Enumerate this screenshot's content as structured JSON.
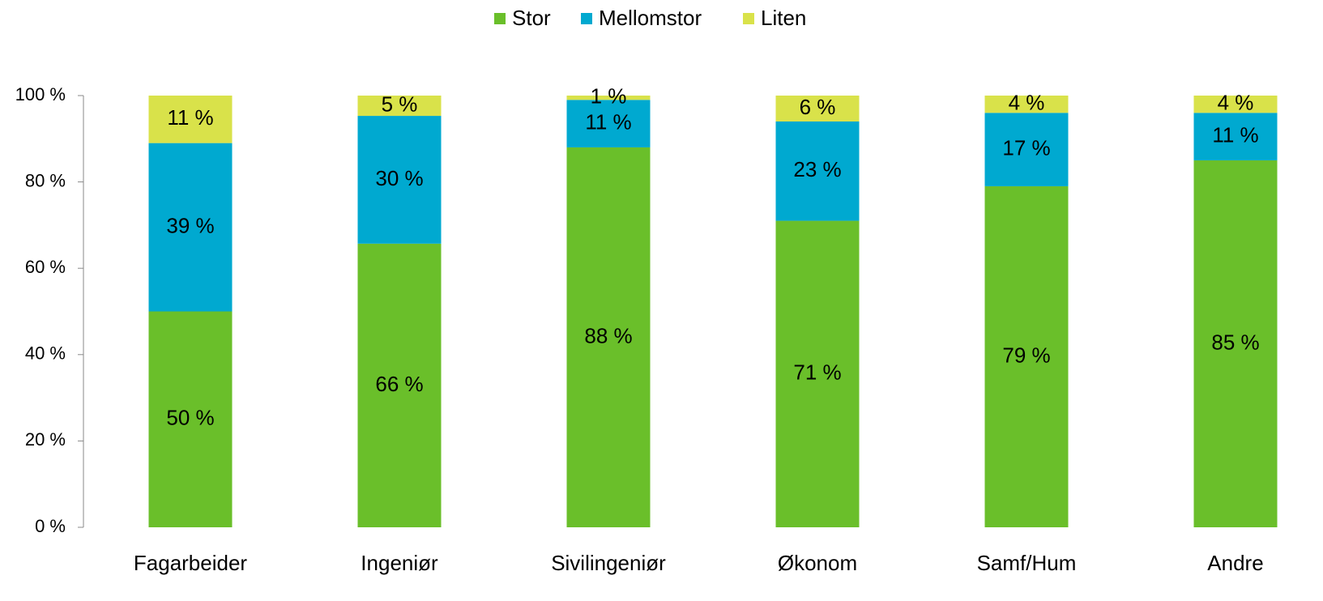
{
  "chart_data": {
    "type": "stacked_bar",
    "categories": [
      "Fagarbeider",
      "Ingeniør",
      "Sivilingeniør",
      "Økonom",
      "Samf/Hum",
      "Andre"
    ],
    "series": [
      {
        "name": "Stor",
        "color": "#6abf2a",
        "values": [
          50,
          65.7,
          88,
          71,
          79,
          85
        ],
        "value_labels": [
          "50 %",
          "66 %",
          "88 %",
          "71 %",
          "79 %",
          "85 %"
        ]
      },
      {
        "name": "Mellomstor",
        "color": "#00a9d0",
        "values": [
          39,
          29.6,
          11,
          23,
          17,
          11
        ],
        "value_labels": [
          "39 %",
          "30 %",
          "11 %",
          "23 %",
          "17 %",
          "11 %"
        ]
      },
      {
        "name": "Liten",
        "color": "#d9e24a",
        "values": [
          11,
          4.7,
          1,
          6,
          4,
          4
        ],
        "value_labels": [
          "11 %",
          "5 %",
          "1 %",
          "6 %",
          "4 %",
          "4 %"
        ]
      }
    ],
    "ylim": [
      0,
      100
    ],
    "yticks": [
      {
        "value": 0,
        "label": "0 %"
      },
      {
        "value": 20,
        "label": "20 %"
      },
      {
        "value": 40,
        "label": "40 %"
      },
      {
        "value": 60,
        "label": "60 %"
      },
      {
        "value": 80,
        "label": "80 %"
      },
      {
        "value": 100,
        "label": "100 %"
      }
    ],
    "legend": "top"
  }
}
